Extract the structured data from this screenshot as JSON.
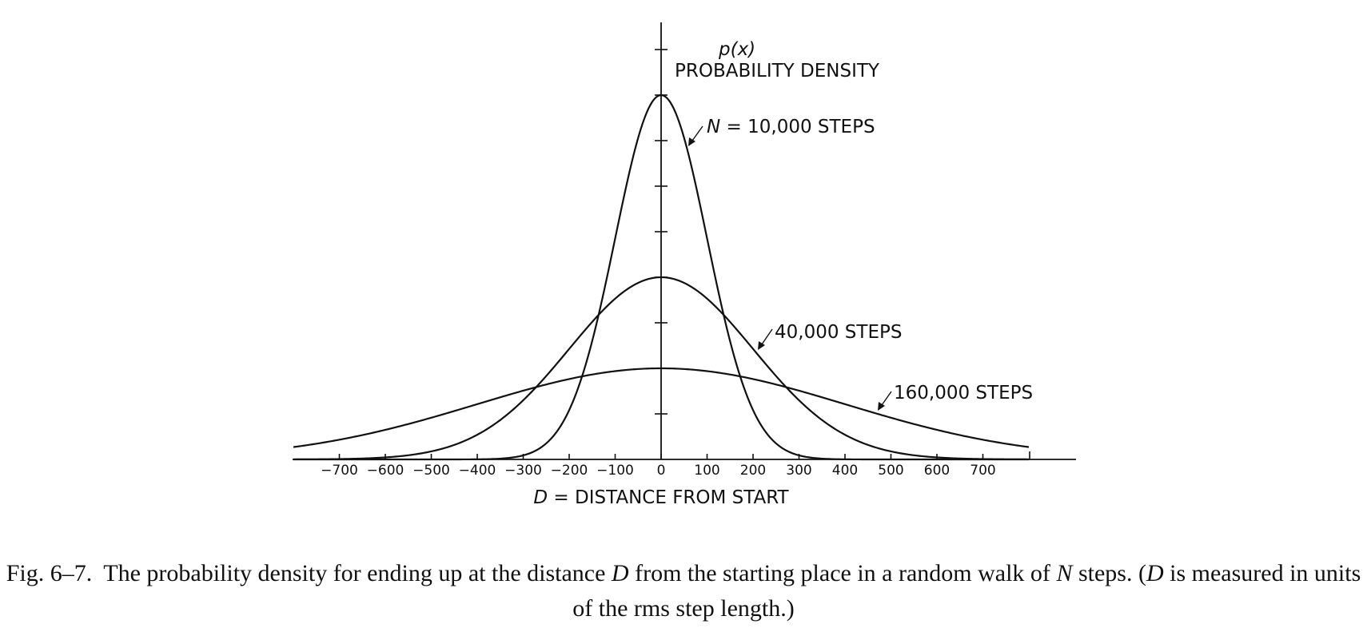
{
  "chart_data": {
    "type": "line",
    "title": "",
    "y_label_symbol": "p(x)",
    "ylabel": "PROBABILITY DENSITY",
    "xlabel_symbol": "D",
    "xlabel": "= DISTANCE FROM START",
    "xlim": [
      -800,
      800
    ],
    "ylim": [
      0,
      0.004
    ],
    "x_ticks": [
      -700,
      -600,
      -500,
      -400,
      -300,
      -200,
      -100,
      0,
      100,
      200,
      300,
      400,
      500,
      600,
      700
    ],
    "x_tick_labels": [
      "−700",
      "−600",
      "−500",
      "−400",
      "−300",
      "−200",
      "−100",
      "0",
      "100",
      "200",
      "300",
      "400",
      "500",
      "600",
      "700"
    ],
    "y_ticks_count": 9,
    "grid": false,
    "series": [
      {
        "N": 10000,
        "label_symbol": "N",
        "label": "= 10,000 STEPS",
        "sigma": 100,
        "peak": 0.004
      },
      {
        "N": 40000,
        "label": "40,000 STEPS",
        "sigma": 200,
        "peak": 0.002
      },
      {
        "N": 160000,
        "label": "160,000 STEPS",
        "sigma": 400,
        "peak": 0.001
      }
    ]
  },
  "caption": {
    "label": "Fig. 6–7.",
    "text_parts": [
      "The probability density for ending up at the distance ",
      "D",
      " from the starting place in a random walk of ",
      "N",
      " steps. (",
      "D",
      " is measured in units of the rms step length.)"
    ]
  }
}
